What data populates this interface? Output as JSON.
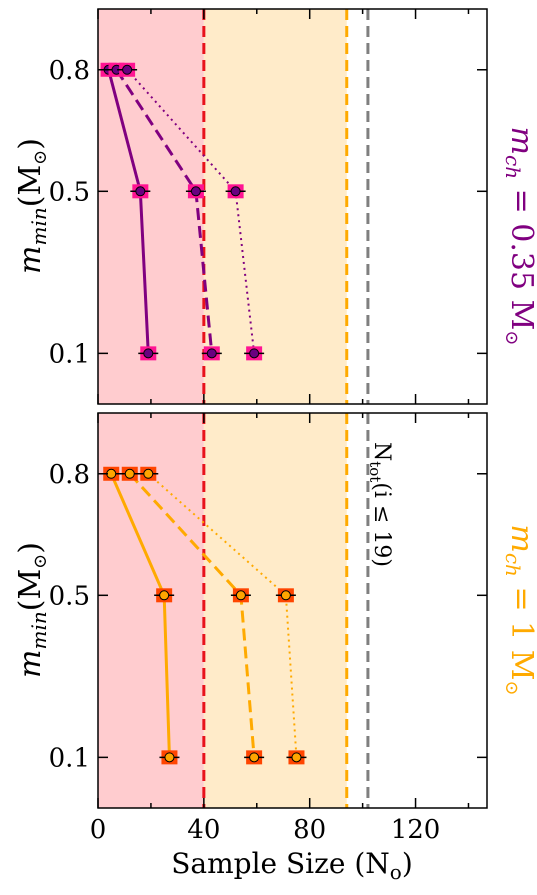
{
  "colors": {
    "red_region": "#ffcccf",
    "orange_region": "#ffebc9",
    "red_line": "#e8121b",
    "orange_line": "#ffaa00",
    "gray_line": "#7f7f7f",
    "purple": "#800080",
    "magenta_marker": "#ff1493",
    "orange_marker_bg": "#ff4500",
    "orange_marker_fill": "#ffa500",
    "purple_marker_fill": "#6a0080"
  },
  "chart_data": [
    {
      "type": "line",
      "panel": "top",
      "xlim": [
        0,
        147
      ],
      "ylim_log": true,
      "yticks": [
        0.8,
        0.5,
        0.1
      ],
      "ytick_labels": [
        "0.8",
        "0.5",
        "0.1"
      ],
      "ylabel": {
        "main": "m",
        "sub": "min",
        "unit": "(M",
        "sun": "⊙",
        "close": ")"
      },
      "side_label": {
        "main": "m",
        "sub": "ch",
        "eq": " = 0.35 M",
        "sun": "⊙"
      },
      "shaded_regions": [
        {
          "x0": 0,
          "x1": 40,
          "color": "red"
        },
        {
          "x0": 40,
          "x1": 94,
          "color": "orange"
        }
      ],
      "vlines": [
        {
          "x": 40,
          "style": "dashed",
          "color": "red"
        },
        {
          "x": 94,
          "style": "dashed",
          "color": "orange"
        },
        {
          "x": 102,
          "style": "dashed",
          "color": "gray"
        }
      ],
      "series": [
        {
          "style": "solid",
          "points": [
            {
              "x": 4,
              "y": 0.8
            },
            {
              "x": 16,
              "y": 0.5
            },
            {
              "x": 19,
              "y": 0.1
            }
          ]
        },
        {
          "style": "dashed",
          "points": [
            {
              "x": 7,
              "y": 0.8
            },
            {
              "x": 37,
              "y": 0.5
            },
            {
              "x": 43,
              "y": 0.1
            }
          ]
        },
        {
          "style": "dotted",
          "points": [
            {
              "x": 11,
              "y": 0.8
            },
            {
              "x": 52,
              "y": 0.5
            },
            {
              "x": 59,
              "y": 0.1
            }
          ]
        }
      ]
    },
    {
      "type": "line",
      "panel": "bottom",
      "xlim": [
        0,
        147
      ],
      "xticks": [
        0,
        40,
        80,
        120
      ],
      "xtick_labels": [
        "0",
        "40",
        "80",
        "120"
      ],
      "xlabel": {
        "main": "Sample Size (N",
        "sub": "o",
        "close": ")"
      },
      "yticks": [
        0.8,
        0.5,
        0.1
      ],
      "ytick_labels": [
        "0.8",
        "0.5",
        "0.1"
      ],
      "ylabel": {
        "main": "m",
        "sub": "min",
        "unit": "(M",
        "sun": "⊙",
        "close": ")"
      },
      "side_label": {
        "main": "m",
        "sub": "ch",
        "eq": " = 1 M",
        "sun": "⊙"
      },
      "annotation": {
        "main": "N",
        "sub": "tot",
        "rest": "(i ≤ 19)"
      },
      "shaded_regions": [
        {
          "x0": 0,
          "x1": 40,
          "color": "red"
        },
        {
          "x0": 40,
          "x1": 94,
          "color": "orange"
        }
      ],
      "vlines": [
        {
          "x": 40,
          "style": "dashed",
          "color": "red"
        },
        {
          "x": 94,
          "style": "dashed",
          "color": "orange"
        },
        {
          "x": 102,
          "style": "dashed",
          "color": "gray"
        }
      ],
      "series": [
        {
          "style": "solid",
          "points": [
            {
              "x": 5,
              "y": 0.8
            },
            {
              "x": 25,
              "y": 0.5
            },
            {
              "x": 27,
              "y": 0.1
            }
          ]
        },
        {
          "style": "dashed",
          "points": [
            {
              "x": 12,
              "y": 0.8
            },
            {
              "x": 54,
              "y": 0.5
            },
            {
              "x": 59,
              "y": 0.1
            }
          ]
        },
        {
          "style": "dotted",
          "points": [
            {
              "x": 19,
              "y": 0.8
            },
            {
              "x": 71,
              "y": 0.5
            },
            {
              "x": 75,
              "y": 0.1
            }
          ]
        }
      ]
    }
  ]
}
